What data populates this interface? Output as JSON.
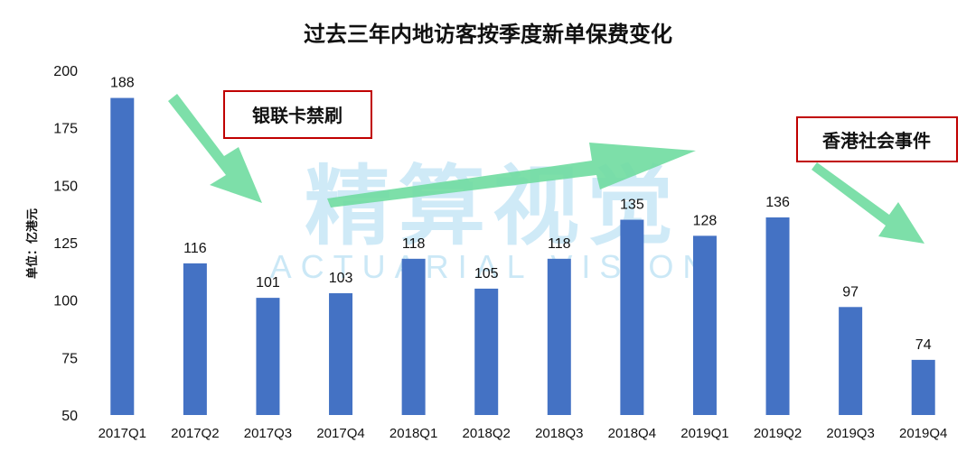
{
  "chart_data": {
    "type": "bar",
    "title": "过去三年内地访客按季度新单保费变化",
    "ylabel": "单位：亿港元",
    "xlabel": "",
    "ylim": [
      50,
      200
    ],
    "yticks": [
      50,
      75,
      100,
      125,
      150,
      175,
      200
    ],
    "grid": false,
    "categories": [
      "2017Q1",
      "2017Q2",
      "2017Q3",
      "2017Q4",
      "2018Q1",
      "2018Q2",
      "2018Q3",
      "2018Q4",
      "2019Q1",
      "2019Q2",
      "2019Q3",
      "2019Q4"
    ],
    "values": [
      188,
      116,
      101,
      103,
      118,
      105,
      118,
      135,
      128,
      136,
      97,
      74
    ],
    "bar_color": "#4472c4",
    "annotations": [
      "银联卡禁刷",
      "香港社会事件"
    ]
  },
  "watermark": {
    "chinese": "精算视觉",
    "english": "ACTUARIAL VISION",
    "color": "#bfe3f5"
  },
  "arrow_color": "#6fdca0",
  "callout_border_color": "#c00000"
}
